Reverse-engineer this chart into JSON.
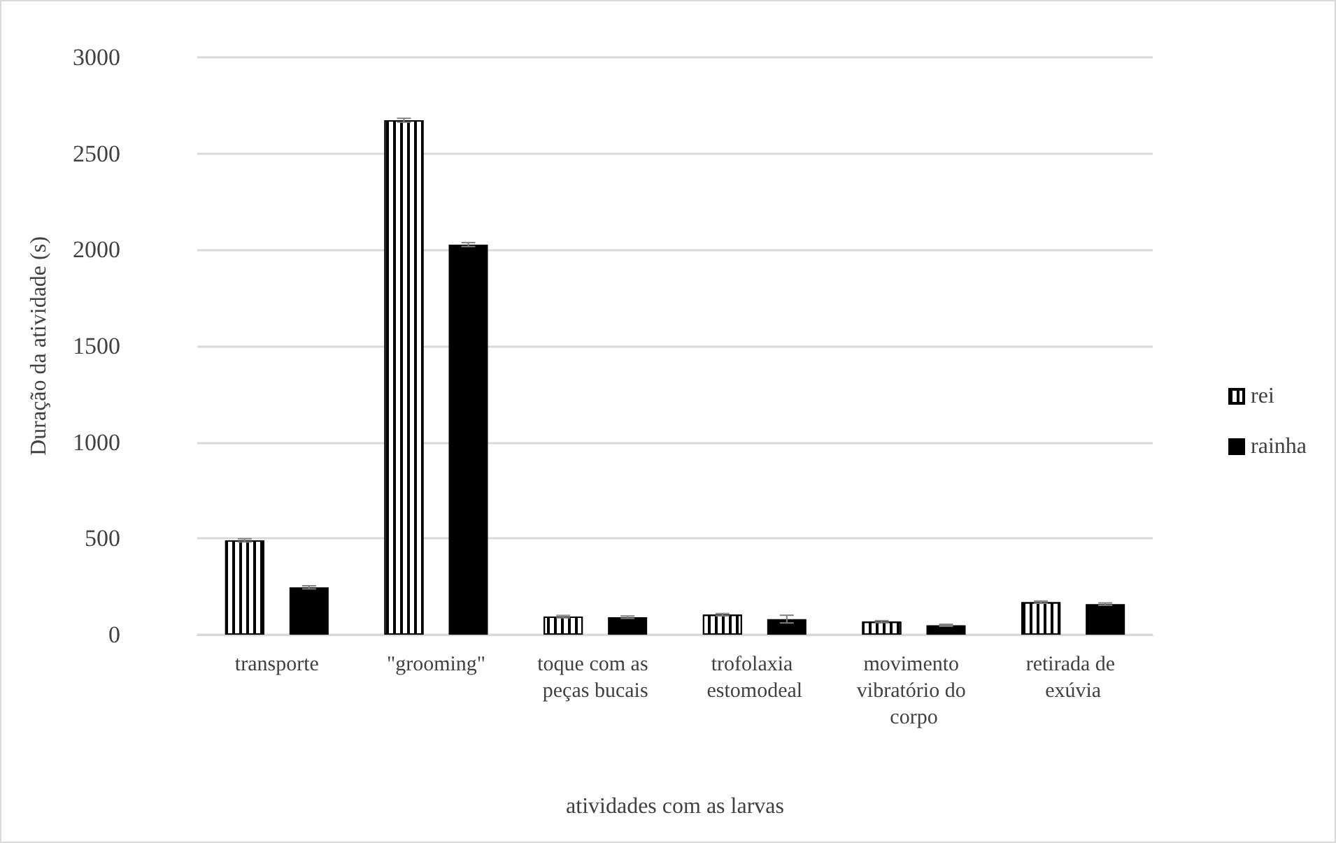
{
  "chart_data": {
    "type": "bar",
    "xlabel": "atividades com as larvas",
    "ylabel": "Duração da atividade (s)",
    "categories": [
      "transporte",
      "\"grooming\"",
      "toque com as peças bucais",
      "trofolaxia estomodeal",
      "movimento vibratório do corpo",
      "retirada de exúvia"
    ],
    "series": [
      {
        "name": "rei",
        "color": "#ffffff",
        "values": [
          490,
          2673,
          94,
          104,
          68,
          169
        ],
        "errors": [
          8,
          10,
          6,
          6,
          5,
          6
        ]
      },
      {
        "name": "rainha",
        "color": "#000000",
        "values": [
          246,
          2027,
          91,
          81,
          49,
          159
        ],
        "errors": [
          8,
          10,
          6,
          20,
          5,
          6
        ]
      }
    ],
    "ylim": [
      0,
      3000
    ],
    "yticks": [
      0,
      500,
      1000,
      1500,
      2000,
      2500,
      3000
    ],
    "grid": "y",
    "legend": "right"
  }
}
